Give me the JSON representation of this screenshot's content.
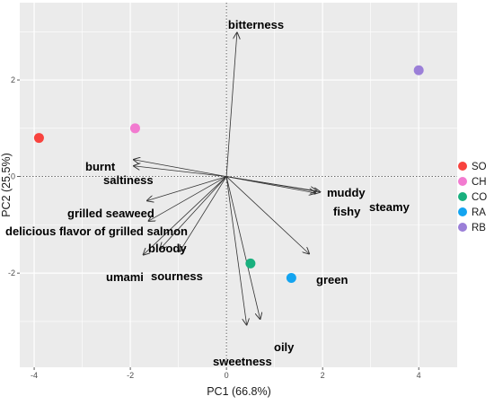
{
  "chart_data": {
    "type": "scatter",
    "subtype": "pca-biplot",
    "title": "",
    "xlabel": "PC1 (66.8%)",
    "ylabel": "PC2 (25.5%)",
    "xlim": [
      -4.3,
      4.8
    ],
    "ylim": [
      -3.95,
      3.6
    ],
    "xticks": [
      -4,
      -2,
      0,
      2,
      4
    ],
    "yticks": [
      -2,
      0,
      2
    ],
    "grid": true,
    "background": "#ebebeb",
    "grid_color": "#ffffff",
    "reference_lines": "dotted at x=0 and y=0",
    "legend_position": "right",
    "points": [
      {
        "label": "SO",
        "x": -3.9,
        "y": 0.8,
        "color": "#f8433e"
      },
      {
        "label": "CH",
        "x": -1.9,
        "y": 1.0,
        "color": "#f27bd0"
      },
      {
        "label": "CO",
        "x": 0.5,
        "y": -1.8,
        "color": "#19b07e"
      },
      {
        "label": "RA",
        "x": 1.35,
        "y": -2.1,
        "color": "#13a4f0"
      },
      {
        "label": "RB",
        "x": 4.0,
        "y": 2.2,
        "color": "#9b7fd8"
      }
    ],
    "vectors": [
      {
        "name": "bitterness",
        "x": 0.22,
        "y": 2.98
      },
      {
        "name": "burnt",
        "x": -1.93,
        "y": 0.35
      },
      {
        "name": "saltiness",
        "x": -1.93,
        "y": 0.22
      },
      {
        "name": "grilled seaweed",
        "x": -1.65,
        "y": -0.5
      },
      {
        "name": "delicious flavor of grilled salmon",
        "x": -1.62,
        "y": -0.92
      },
      {
        "name": "bloody",
        "x": -1.73,
        "y": -1.62
      },
      {
        "name": "umami",
        "x": -1.38,
        "y": -1.5
      },
      {
        "name": "sourness",
        "x": -0.97,
        "y": -1.55
      },
      {
        "name": "muddy",
        "x": 1.95,
        "y": -0.32
      },
      {
        "name": "fishy",
        "x": 1.85,
        "y": -0.34
      },
      {
        "name": "steamy",
        "x": 1.88,
        "y": -0.3
      },
      {
        "name": "green",
        "x": 1.72,
        "y": -1.6
      },
      {
        "name": "oily",
        "x": 0.7,
        "y": -2.95
      },
      {
        "name": "sweetness",
        "x": 0.42,
        "y": -3.07
      }
    ]
  }
}
